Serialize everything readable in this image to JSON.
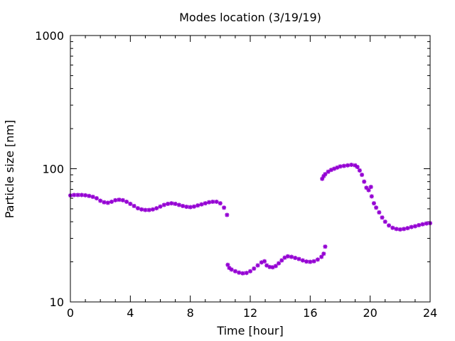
{
  "chart_data": {
    "type": "scatter",
    "title": "Modes location (3/19/19)",
    "xlabel": "Time [hour]",
    "ylabel": "Particle size [nm]",
    "xlim": [
      0,
      24
    ],
    "ylim": [
      10,
      1000
    ],
    "yscale": "log",
    "grid": false,
    "legend": "none",
    "marker_color": "#9400D3",
    "x_ticks": [
      0,
      4,
      8,
      12,
      16,
      20,
      24
    ],
    "x_tick_labels": [
      "0",
      "4",
      "8",
      "12",
      "16",
      "20",
      "24"
    ],
    "y_ticks": [
      10,
      100,
      1000
    ],
    "y_tick_labels": [
      "10",
      "100",
      "1000"
    ],
    "series": [
      {
        "points": [
          [
            0.0,
            63
          ],
          [
            0.25,
            63.5
          ],
          [
            0.5,
            63.5
          ],
          [
            0.75,
            63.5
          ],
          [
            1.0,
            63.2
          ],
          [
            1.25,
            62.5
          ],
          [
            1.5,
            61.5
          ],
          [
            1.75,
            60
          ],
          [
            2.0,
            57.5
          ],
          [
            2.25,
            56
          ],
          [
            2.5,
            55.5
          ],
          [
            2.75,
            56.5
          ],
          [
            3.0,
            58
          ],
          [
            3.25,
            58.5
          ],
          [
            3.5,
            58
          ],
          [
            3.75,
            56.5
          ],
          [
            4.0,
            54.5
          ],
          [
            4.25,
            52.5
          ],
          [
            4.5,
            50.5
          ],
          [
            4.75,
            49.5
          ],
          [
            5.0,
            49
          ],
          [
            5.25,
            49
          ],
          [
            5.5,
            49.5
          ],
          [
            5.75,
            50.5
          ],
          [
            6.0,
            52
          ],
          [
            6.25,
            53.5
          ],
          [
            6.5,
            54.5
          ],
          [
            6.75,
            55
          ],
          [
            7.0,
            54.5
          ],
          [
            7.25,
            53.5
          ],
          [
            7.5,
            52.5
          ],
          [
            7.75,
            51.8
          ],
          [
            8.0,
            51.5
          ],
          [
            8.25,
            52
          ],
          [
            8.5,
            53
          ],
          [
            8.75,
            54
          ],
          [
            9.0,
            55
          ],
          [
            9.25,
            56
          ],
          [
            9.5,
            56.5
          ],
          [
            9.75,
            56.5
          ],
          [
            10.0,
            55
          ],
          [
            10.25,
            51
          ],
          [
            10.45,
            45
          ]
        ]
      },
      {
        "points": [
          [
            10.5,
            19
          ],
          [
            10.6,
            18
          ],
          [
            10.75,
            17.5
          ],
          [
            11.0,
            17
          ],
          [
            11.25,
            16.6
          ],
          [
            11.5,
            16.4
          ],
          [
            11.75,
            16.5
          ],
          [
            12.0,
            17
          ],
          [
            12.25,
            17.8
          ],
          [
            12.5,
            18.8
          ],
          [
            12.75,
            19.8
          ],
          [
            12.95,
            20.2
          ],
          [
            13.1,
            18.8
          ],
          [
            13.3,
            18.3
          ],
          [
            13.5,
            18.2
          ],
          [
            13.7,
            18.6
          ],
          [
            13.9,
            19.5
          ],
          [
            14.1,
            20.5
          ],
          [
            14.3,
            21.5
          ],
          [
            14.5,
            22
          ],
          [
            14.75,
            21.8
          ],
          [
            15.0,
            21.4
          ],
          [
            15.25,
            21
          ],
          [
            15.5,
            20.5
          ],
          [
            15.75,
            20.1
          ],
          [
            16.0,
            20
          ],
          [
            16.25,
            20.2
          ],
          [
            16.5,
            20.8
          ],
          [
            16.75,
            21.8
          ],
          [
            16.9,
            23
          ],
          [
            17.0,
            26
          ]
        ]
      },
      {
        "points": [
          [
            16.8,
            84
          ],
          [
            16.9,
            88
          ],
          [
            17.0,
            91
          ],
          [
            17.2,
            95
          ],
          [
            17.4,
            98
          ],
          [
            17.6,
            100
          ],
          [
            17.8,
            102
          ],
          [
            18.0,
            104
          ],
          [
            18.25,
            105
          ],
          [
            18.5,
            106
          ],
          [
            18.75,
            107
          ],
          [
            19.0,
            106
          ],
          [
            19.15,
            103
          ],
          [
            19.3,
            97
          ],
          [
            19.45,
            90
          ],
          [
            19.6,
            80
          ],
          [
            19.75,
            72
          ],
          [
            19.9,
            69
          ],
          [
            20.05,
            73
          ],
          [
            20.1,
            62
          ],
          [
            20.25,
            55
          ],
          [
            20.4,
            51
          ],
          [
            20.6,
            47
          ],
          [
            20.8,
            43
          ],
          [
            21.0,
            40
          ],
          [
            21.25,
            37.5
          ],
          [
            21.5,
            36
          ],
          [
            21.75,
            35.3
          ],
          [
            22.0,
            35
          ],
          [
            22.25,
            35.3
          ],
          [
            22.5,
            35.8
          ],
          [
            22.75,
            36.5
          ],
          [
            23.0,
            37
          ],
          [
            23.25,
            37.7
          ],
          [
            23.5,
            38.3
          ],
          [
            23.75,
            38.8
          ],
          [
            24.0,
            39
          ]
        ]
      }
    ]
  }
}
